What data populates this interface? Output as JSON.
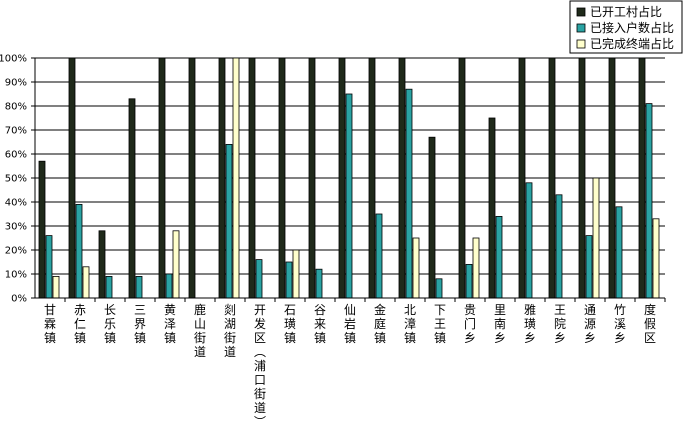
{
  "chart_data": {
    "type": "bar",
    "title": "",
    "xlabel": "",
    "ylabel": "",
    "ylim": [
      0,
      100
    ],
    "yticks": [
      "0%",
      "10%",
      "20%",
      "30%",
      "40%",
      "50%",
      "60%",
      "70%",
      "80%",
      "90%",
      "100%"
    ],
    "grid": true,
    "legend_position": "top-right",
    "categories": [
      "甘霖镇",
      "赤仁镇",
      "长乐镇",
      "三界镇",
      "黄泽镇",
      "鹿山街道",
      "剡湖街道",
      "开发区（浦口街道）",
      "石璜镇",
      "谷来镇",
      "仙岩镇",
      "金庭镇",
      "北漳镇",
      "下王镇",
      "贵门乡",
      "里南乡",
      "雅璜乡",
      "王院乡",
      "通源乡",
      "竹溪乡",
      "度假区"
    ],
    "series": [
      {
        "name": "已开工村占比",
        "color": "#1f2a1a",
        "values": [
          57,
          100,
          28,
          83,
          100,
          100,
          100,
          100,
          100,
          100,
          100,
          100,
          100,
          67,
          100,
          75,
          100,
          100,
          100,
          100,
          100
        ]
      },
      {
        "name": "已接入户数占比",
        "color": "#2aa3a3",
        "values": [
          26,
          39,
          9,
          9,
          10,
          0,
          64,
          16,
          15,
          12,
          85,
          35,
          87,
          8,
          14,
          34,
          48,
          43,
          26,
          38,
          81
        ]
      },
      {
        "name": "已完成终端占比",
        "color": "#ffffcc",
        "values": [
          9,
          13,
          0,
          0,
          28,
          0,
          100,
          0,
          20,
          0,
          0,
          0,
          25,
          0,
          25,
          0,
          0,
          0,
          50,
          0,
          33
        ]
      }
    ]
  }
}
